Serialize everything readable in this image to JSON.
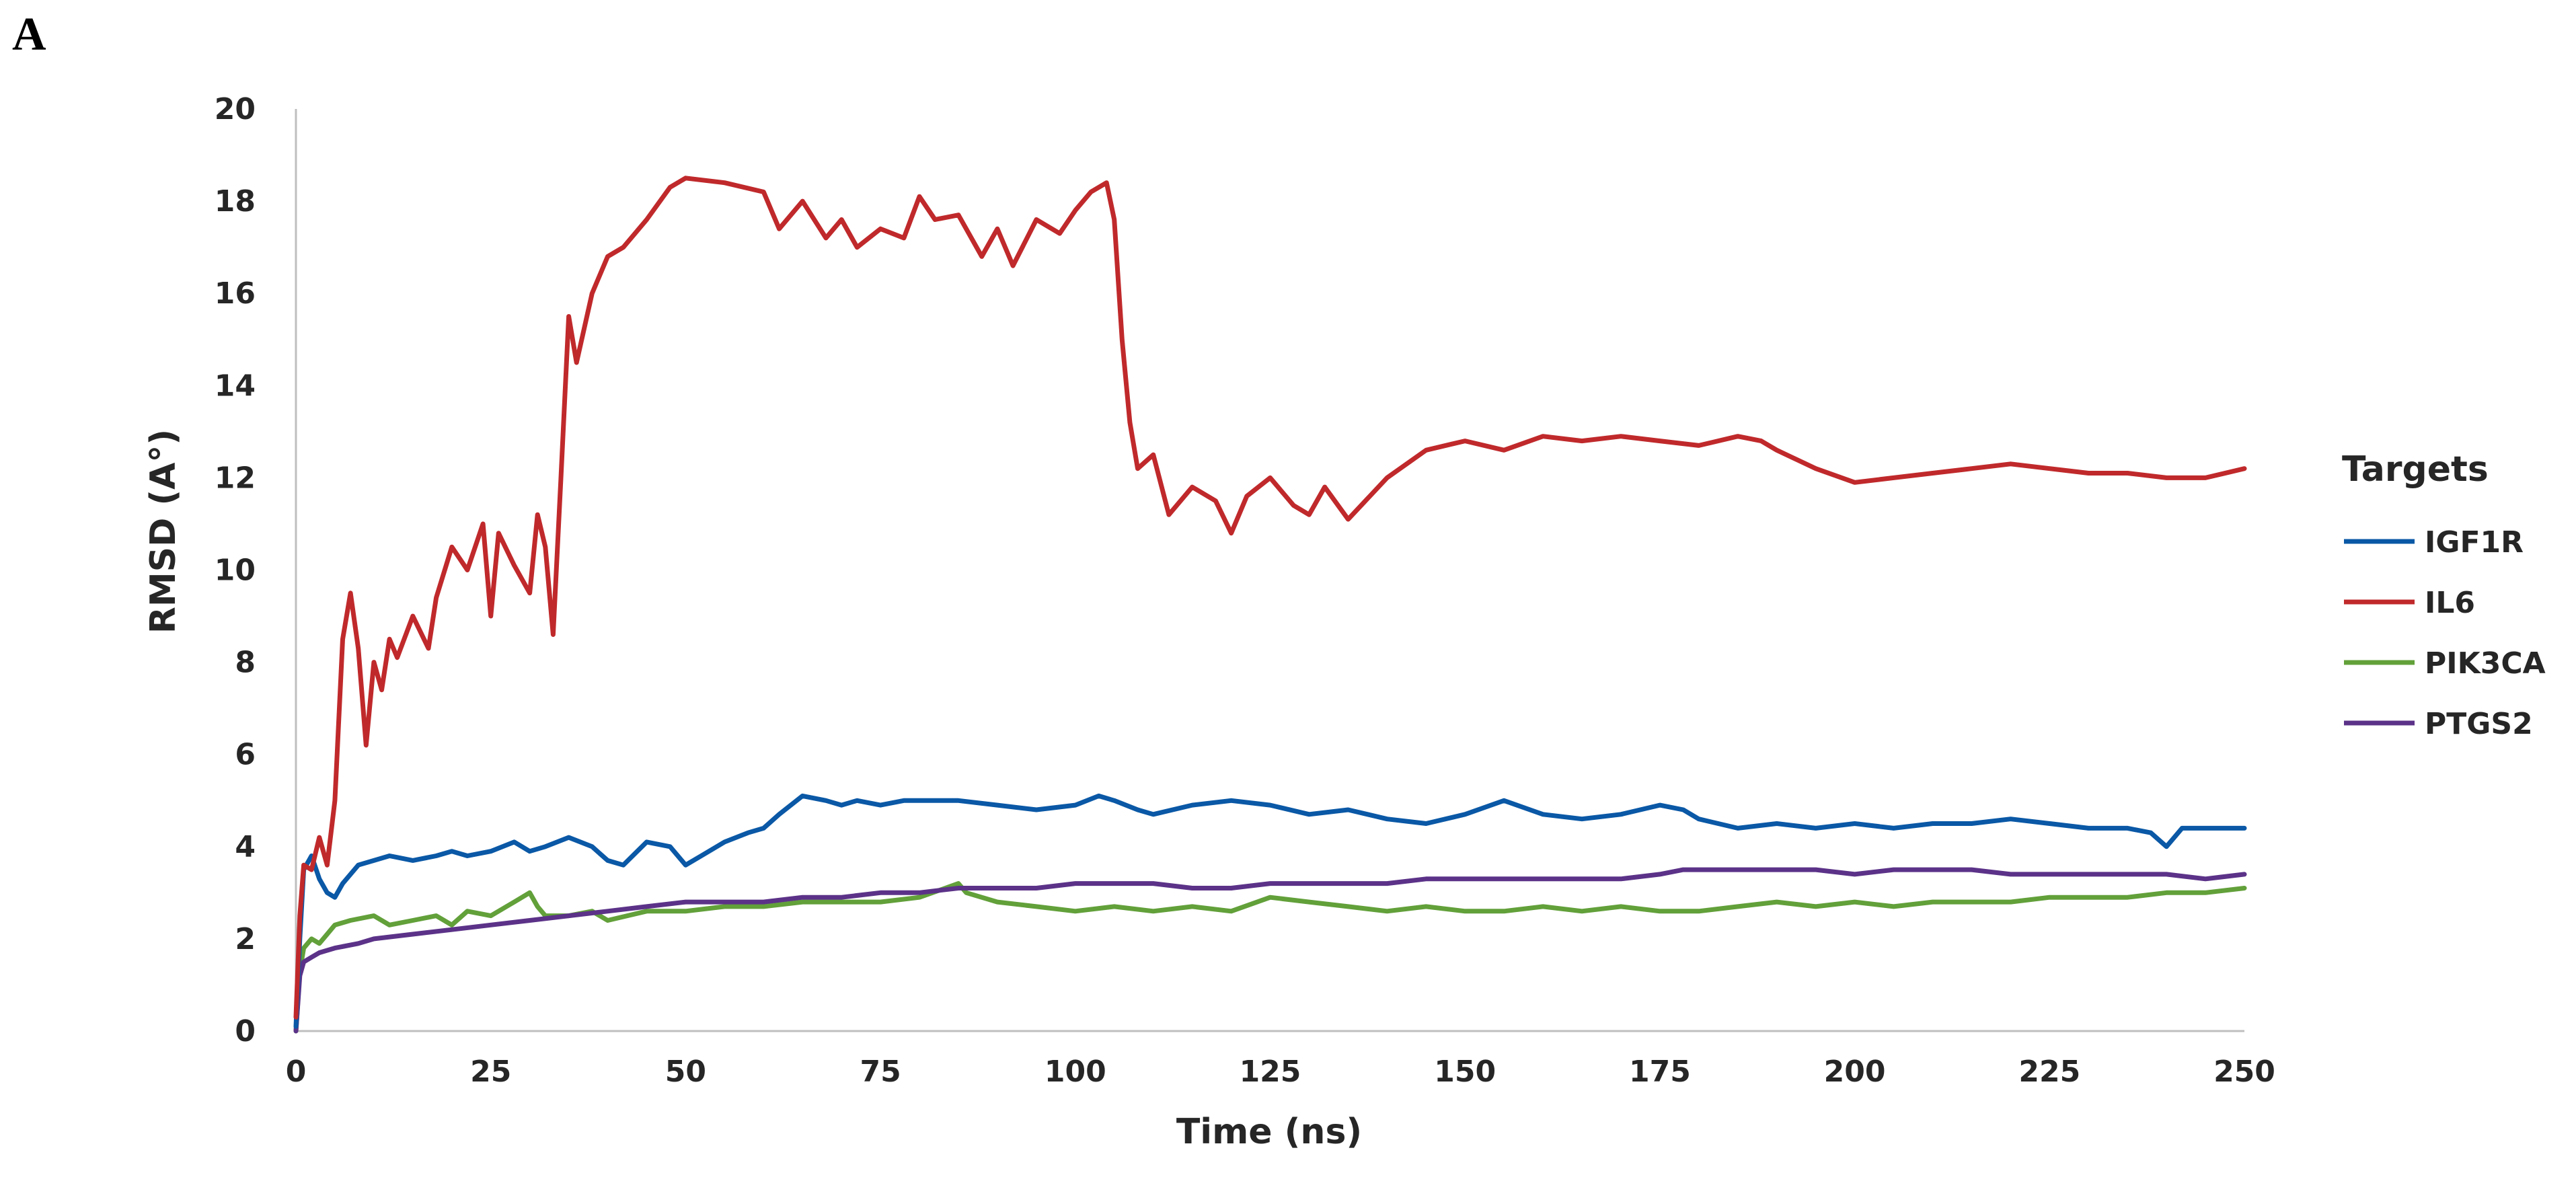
{
  "panel_label": "A",
  "chart_data": {
    "type": "line",
    "title": "",
    "xlabel": "Time (ns)",
    "ylabel": "RMSD (A°)",
    "xlim": [
      0,
      250
    ],
    "ylim": [
      0,
      20
    ],
    "xticks": [
      0,
      25,
      50,
      75,
      100,
      125,
      150,
      175,
      200,
      225,
      250
    ],
    "yticks": [
      0,
      2,
      4,
      6,
      8,
      10,
      12,
      14,
      16,
      18,
      20
    ],
    "grid": false,
    "legend": {
      "title": "Targets",
      "position": "right"
    },
    "series": [
      {
        "name": "IGF1R",
        "color": "#0a58a6",
        "x": [
          0,
          0.5,
          1,
          2,
          3,
          4,
          5,
          6,
          8,
          10,
          12,
          15,
          18,
          20,
          22,
          25,
          28,
          30,
          32,
          35,
          38,
          40,
          42,
          45,
          48,
          50,
          52,
          55,
          58,
          60,
          62,
          65,
          68,
          70,
          72,
          75,
          78,
          80,
          85,
          90,
          95,
          100,
          103,
          105,
          108,
          110,
          115,
          120,
          125,
          130,
          135,
          140,
          145,
          150,
          155,
          160,
          165,
          170,
          175,
          178,
          180,
          185,
          190,
          195,
          200,
          205,
          210,
          215,
          220,
          225,
          230,
          235,
          238,
          240,
          242,
          245,
          250
        ],
        "y": [
          0.1,
          2.0,
          3.5,
          3.8,
          3.3,
          3.0,
          2.9,
          3.2,
          3.6,
          3.7,
          3.8,
          3.7,
          3.8,
          3.9,
          3.8,
          3.9,
          4.1,
          3.9,
          4.0,
          4.2,
          4.0,
          3.7,
          3.6,
          4.1,
          4.0,
          3.6,
          3.8,
          4.1,
          4.3,
          4.4,
          4.7,
          5.1,
          5.0,
          4.9,
          5.0,
          4.9,
          5.0,
          5.0,
          5.0,
          4.9,
          4.8,
          4.9,
          5.1,
          5.0,
          4.8,
          4.7,
          4.9,
          5.0,
          4.9,
          4.7,
          4.8,
          4.6,
          4.5,
          4.7,
          5.0,
          4.7,
          4.6,
          4.7,
          4.9,
          4.8,
          4.6,
          4.4,
          4.5,
          4.4,
          4.5,
          4.4,
          4.5,
          4.5,
          4.6,
          4.5,
          4.4,
          4.4,
          4.3,
          4.0,
          4.4,
          4.4,
          4.4
        ]
      },
      {
        "name": "IL6",
        "color": "#c0292b",
        "x": [
          0,
          0.5,
          1,
          2,
          3,
          4,
          5,
          6,
          7,
          8,
          9,
          10,
          11,
          12,
          13,
          15,
          17,
          18,
          20,
          22,
          24,
          25,
          26,
          28,
          30,
          31,
          32,
          33,
          34,
          35,
          36,
          38,
          40,
          42,
          45,
          48,
          50,
          55,
          60,
          62,
          65,
          68,
          70,
          72,
          75,
          78,
          80,
          82,
          85,
          88,
          90,
          92,
          95,
          98,
          100,
          102,
          104,
          105,
          106,
          107,
          108,
          110,
          112,
          115,
          118,
          120,
          122,
          125,
          128,
          130,
          132,
          135,
          140,
          145,
          150,
          155,
          160,
          165,
          170,
          175,
          180,
          185,
          188,
          190,
          195,
          200,
          205,
          210,
          215,
          220,
          225,
          230,
          235,
          240,
          245,
          250
        ],
        "y": [
          0.3,
          2.5,
          3.6,
          3.5,
          4.2,
          3.6,
          5.0,
          8.5,
          9.5,
          8.3,
          6.2,
          8.0,
          7.4,
          8.5,
          8.1,
          9.0,
          8.3,
          9.4,
          10.5,
          10.0,
          11.0,
          9.0,
          10.8,
          10.1,
          9.5,
          11.2,
          10.5,
          8.6,
          12.0,
          15.5,
          14.5,
          16.0,
          16.8,
          17.0,
          17.6,
          18.3,
          18.5,
          18.4,
          18.2,
          17.4,
          18.0,
          17.2,
          17.6,
          17.0,
          17.4,
          17.2,
          18.1,
          17.6,
          17.7,
          16.8,
          17.4,
          16.6,
          17.6,
          17.3,
          17.8,
          18.2,
          18.4,
          17.6,
          15.0,
          13.2,
          12.2,
          12.5,
          11.2,
          11.8,
          11.5,
          10.8,
          11.6,
          12.0,
          11.4,
          11.2,
          11.8,
          11.1,
          12.0,
          12.6,
          12.8,
          12.6,
          12.9,
          12.8,
          12.9,
          12.8,
          12.7,
          12.9,
          12.8,
          12.6,
          12.2,
          11.9,
          12.0,
          12.1,
          12.2,
          12.3,
          12.2,
          12.1,
          12.1,
          12.0,
          12.0,
          12.2
        ]
      },
      {
        "name": "PIK3CA",
        "color": "#62a03a",
        "x": [
          0,
          0.5,
          1,
          2,
          3,
          4,
          5,
          7,
          10,
          12,
          15,
          18,
          20,
          22,
          25,
          28,
          30,
          31,
          32,
          35,
          38,
          40,
          45,
          50,
          55,
          60,
          65,
          70,
          75,
          80,
          85,
          86,
          90,
          95,
          100,
          105,
          110,
          115,
          120,
          125,
          130,
          135,
          140,
          145,
          150,
          155,
          160,
          165,
          170,
          175,
          180,
          185,
          190,
          195,
          200,
          205,
          210,
          215,
          220,
          225,
          230,
          235,
          240,
          245,
          250
        ],
        "y": [
          0.0,
          1.3,
          1.8,
          2.0,
          1.9,
          2.1,
          2.3,
          2.4,
          2.5,
          2.3,
          2.4,
          2.5,
          2.3,
          2.6,
          2.5,
          2.8,
          3.0,
          2.7,
          2.5,
          2.5,
          2.6,
          2.4,
          2.6,
          2.6,
          2.7,
          2.7,
          2.8,
          2.8,
          2.8,
          2.9,
          3.2,
          3.0,
          2.8,
          2.7,
          2.6,
          2.7,
          2.6,
          2.7,
          2.6,
          2.9,
          2.8,
          2.7,
          2.6,
          2.7,
          2.6,
          2.6,
          2.7,
          2.6,
          2.7,
          2.6,
          2.6,
          2.7,
          2.8,
          2.7,
          2.8,
          2.7,
          2.8,
          2.8,
          2.8,
          2.9,
          2.9,
          2.9,
          3.0,
          3.0,
          3.1
        ]
      },
      {
        "name": "PTGS2",
        "color": "#5b3288",
        "x": [
          0,
          0.5,
          1,
          2,
          3,
          5,
          8,
          10,
          15,
          20,
          25,
          30,
          35,
          40,
          45,
          50,
          55,
          60,
          65,
          70,
          75,
          80,
          85,
          90,
          95,
          100,
          105,
          110,
          115,
          120,
          125,
          130,
          135,
          140,
          145,
          150,
          155,
          160,
          165,
          170,
          175,
          178,
          180,
          185,
          190,
          195,
          200,
          205,
          210,
          215,
          220,
          225,
          230,
          235,
          240,
          245,
          250
        ],
        "y": [
          0.0,
          1.2,
          1.5,
          1.6,
          1.7,
          1.8,
          1.9,
          2.0,
          2.1,
          2.2,
          2.3,
          2.4,
          2.5,
          2.6,
          2.7,
          2.8,
          2.8,
          2.8,
          2.9,
          2.9,
          3.0,
          3.0,
          3.1,
          3.1,
          3.1,
          3.2,
          3.2,
          3.2,
          3.1,
          3.1,
          3.2,
          3.2,
          3.2,
          3.2,
          3.3,
          3.3,
          3.3,
          3.3,
          3.3,
          3.3,
          3.4,
          3.5,
          3.5,
          3.5,
          3.5,
          3.5,
          3.4,
          3.5,
          3.5,
          3.5,
          3.4,
          3.4,
          3.4,
          3.4,
          3.4,
          3.3,
          3.4
        ]
      }
    ]
  }
}
